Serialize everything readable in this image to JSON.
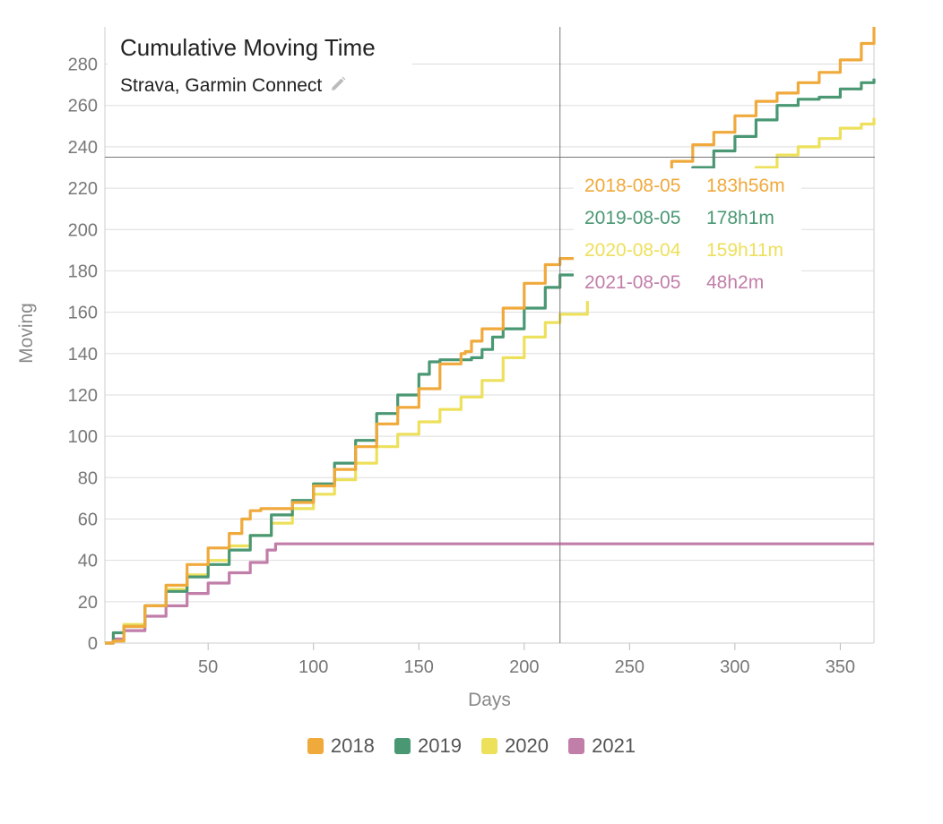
{
  "colors": {
    "s2018": "#f0a93b",
    "s2019": "#4a9873",
    "s2020": "#ede05b",
    "s2021": "#c17ea9",
    "grid": "#dddddd",
    "axis_text": "#777777",
    "crosshair": "#777777"
  },
  "title": "Cumulative Moving Time",
  "subtitle": "Strava, Garmin Connect",
  "subtitle_icon": "pencil-icon",
  "tooltip": {
    "rows": [
      {
        "date": "2018-08-05",
        "value": "183h56m",
        "series": "2018"
      },
      {
        "date": "2019-08-05",
        "value": "178h1m",
        "series": "2019"
      },
      {
        "date": "2020-08-04",
        "value": "159h11m",
        "series": "2020"
      },
      {
        "date": "2021-08-05",
        "value": "48h2m",
        "series": "2021"
      }
    ]
  },
  "crosshair": {
    "x_value": 217,
    "y_value": 235
  },
  "legend": [
    {
      "label": "2018",
      "color": "#f0a93b"
    },
    {
      "label": "2019",
      "color": "#4a9873"
    },
    {
      "label": "2020",
      "color": "#ede05b"
    },
    {
      "label": "2021",
      "color": "#c17ea9"
    }
  ],
  "chart_data": {
    "type": "line",
    "title": "Cumulative Moving Time",
    "subtitle": "Strava, Garmin Connect",
    "xlabel": "Days",
    "ylabel": "Moving",
    "xlim": [
      1,
      366
    ],
    "ylim": [
      0,
      298
    ],
    "xticks": [
      50,
      100,
      150,
      200,
      250,
      300,
      350
    ],
    "yticks": [
      0,
      20,
      40,
      60,
      80,
      100,
      120,
      140,
      160,
      180,
      200,
      220,
      240,
      260,
      280
    ],
    "grid": true,
    "legend_position": "bottom-center",
    "series": [
      {
        "name": "2018",
        "color": "#f0a93b",
        "x": [
          1,
          5,
          10,
          20,
          30,
          40,
          50,
          60,
          66,
          70,
          75,
          80,
          85,
          90,
          100,
          110,
          120,
          130,
          140,
          150,
          160,
          170,
          172,
          175,
          180,
          190,
          200,
          210,
          217,
          230,
          240,
          250,
          260,
          270,
          280,
          290,
          300,
          310,
          320,
          330,
          340,
          350,
          360,
          366
        ],
        "y": [
          0,
          1,
          8,
          18,
          28,
          38,
          46,
          53,
          60,
          64,
          65,
          65,
          65,
          68,
          76,
          84,
          95,
          106,
          114,
          123,
          135,
          140,
          141,
          146,
          152,
          162,
          174,
          183,
          186,
          193,
          204,
          214,
          223,
          233,
          241,
          247,
          255,
          262,
          266,
          271,
          276,
          282,
          290,
          298
        ]
      },
      {
        "name": "2019",
        "color": "#4a9873",
        "x": [
          1,
          5,
          10,
          20,
          30,
          40,
          50,
          60,
          70,
          80,
          90,
          100,
          110,
          120,
          130,
          140,
          150,
          155,
          160,
          165,
          170,
          175,
          180,
          185,
          190,
          200,
          210,
          217,
          230,
          240,
          250,
          260,
          270,
          280,
          290,
          300,
          310,
          320,
          330,
          340,
          350,
          360,
          366
        ],
        "y": [
          0,
          5,
          8,
          18,
          25,
          32,
          38,
          45,
          52,
          62,
          69,
          77,
          87,
          98,
          111,
          120,
          130,
          136,
          137,
          137,
          137,
          138,
          142,
          148,
          152,
          162,
          172,
          178,
          189,
          200,
          208,
          215,
          223,
          230,
          238,
          245,
          253,
          260,
          263,
          264,
          268,
          271,
          273
        ]
      },
      {
        "name": "2020",
        "color": "#ede05b",
        "x": [
          1,
          5,
          10,
          20,
          30,
          40,
          50,
          60,
          70,
          80,
          90,
          100,
          110,
          120,
          130,
          140,
          150,
          160,
          170,
          180,
          190,
          200,
          210,
          217,
          230,
          240,
          250,
          260,
          270,
          280,
          290,
          300,
          310,
          320,
          330,
          340,
          350,
          360,
          366
        ],
        "y": [
          0,
          1,
          9,
          18,
          26,
          33,
          40,
          47,
          52,
          58,
          65,
          72,
          79,
          87,
          95,
          101,
          107,
          113,
          119,
          127,
          138,
          148,
          155,
          159,
          167,
          175,
          184,
          194,
          200,
          205,
          212,
          222,
          230,
          236,
          240,
          244,
          249,
          251,
          254
        ]
      },
      {
        "name": "2021",
        "color": "#c17ea9",
        "x": [
          1,
          5,
          10,
          20,
          30,
          40,
          50,
          60,
          70,
          78,
          82,
          83,
          100,
          150,
          200,
          217,
          250,
          300,
          366
        ],
        "y": [
          0,
          2,
          6,
          13,
          18,
          24,
          29,
          34,
          39,
          45,
          48,
          48,
          48,
          48,
          48,
          48,
          48,
          48,
          48
        ]
      }
    ]
  }
}
